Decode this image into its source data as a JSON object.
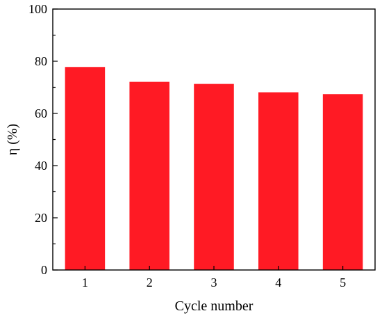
{
  "chart_data": {
    "type": "bar",
    "categories": [
      "1",
      "2",
      "3",
      "4",
      "5"
    ],
    "values": [
      77.8,
      72.1,
      71.3,
      68.1,
      67.4
    ],
    "xlabel": "Cycle number",
    "ylabel": "η (%)",
    "ylim": [
      0,
      100
    ],
    "yticks": [
      0,
      20,
      40,
      60,
      80,
      100
    ],
    "bar_color": "#ff1a24",
    "grid": false,
    "legend": "none"
  }
}
